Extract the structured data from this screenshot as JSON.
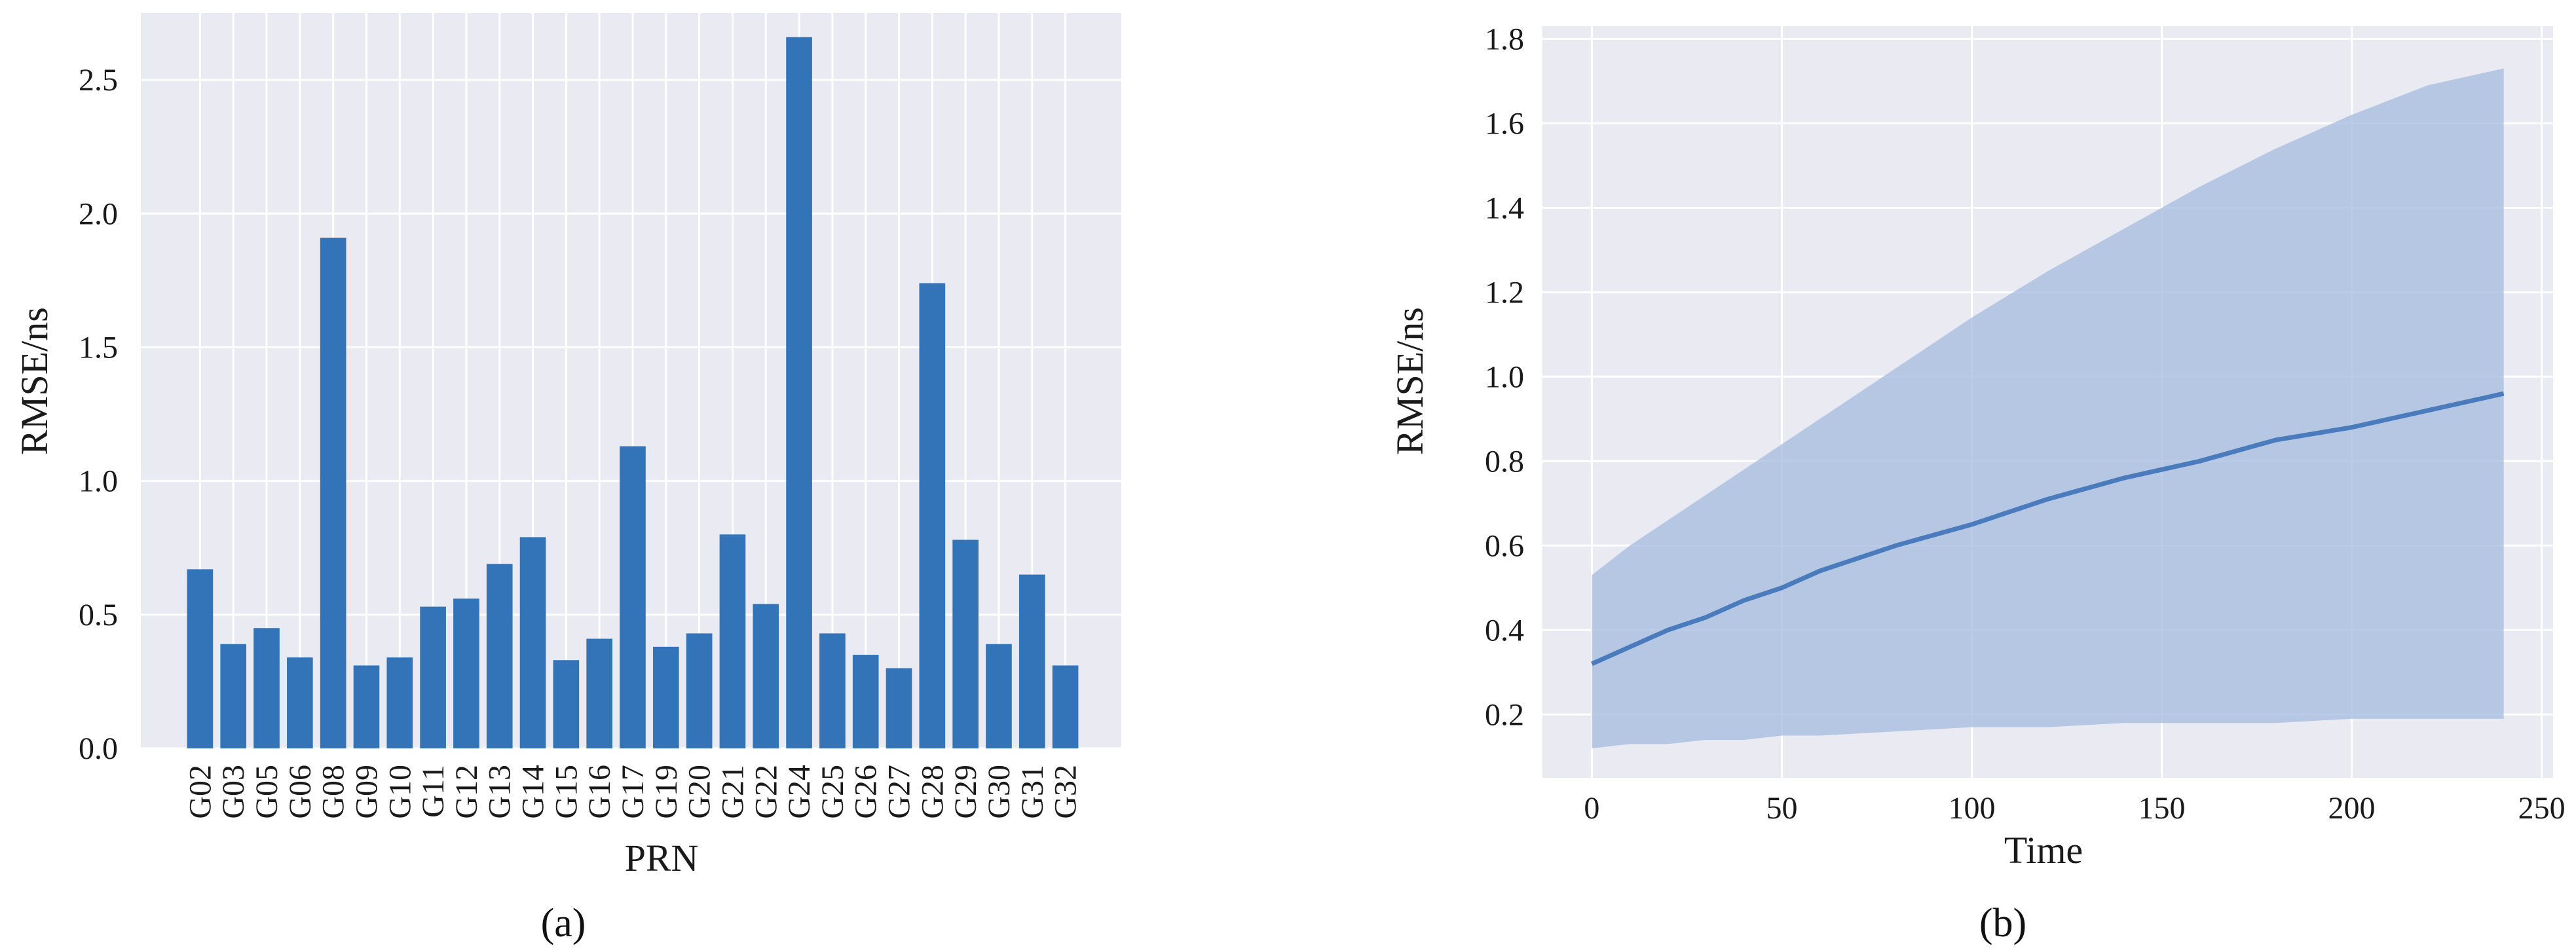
{
  "panels": [
    {
      "label": "(a)"
    },
    {
      "label": "(b)"
    }
  ],
  "chart_data": [
    {
      "type": "bar",
      "xlabel": "PRN",
      "ylabel": "RMSE/ns",
      "ylim": [
        0,
        2.75
      ],
      "yticks": [
        "0.0",
        "0.5",
        "1.0",
        "1.5",
        "2.0",
        "2.5"
      ],
      "grid": true,
      "bar_color": "#3274b7",
      "background": "#eaeaf2",
      "categories": [
        "G02",
        "G03",
        "G05",
        "G06",
        "G08",
        "G09",
        "G10",
        "G11",
        "G12",
        "G13",
        "G14",
        "G15",
        "G16",
        "G17",
        "G19",
        "G20",
        "G21",
        "G22",
        "G24",
        "G25",
        "G26",
        "G27",
        "G28",
        "G29",
        "G30",
        "G31",
        "G32"
      ],
      "values": [
        0.67,
        0.39,
        0.45,
        0.34,
        1.91,
        0.31,
        0.34,
        0.53,
        0.56,
        0.69,
        0.79,
        0.33,
        0.41,
        1.13,
        0.38,
        0.43,
        0.8,
        0.54,
        2.66,
        0.43,
        0.35,
        0.3,
        1.74,
        0.78,
        0.39,
        0.65,
        0.31
      ]
    },
    {
      "type": "area",
      "xlabel": "Time",
      "ylabel": "RMSE/ns",
      "xlim": [
        -13,
        253
      ],
      "ylim": [
        0.05,
        1.83
      ],
      "xticks": [
        "0",
        "50",
        "100",
        "150",
        "200",
        "250"
      ],
      "yticks": [
        "0.2",
        "0.4",
        "0.6",
        "0.8",
        "1.0",
        "1.2",
        "1.4",
        "1.6",
        "1.8"
      ],
      "grid": true,
      "line_color": "#4a7bbd",
      "band_color": "#a5bcdf",
      "background": "#eaeaf2",
      "x": [
        0,
        10,
        20,
        30,
        40,
        50,
        60,
        80,
        100,
        120,
        140,
        160,
        180,
        200,
        220,
        240
      ],
      "mean": [
        0.32,
        0.36,
        0.4,
        0.43,
        0.47,
        0.5,
        0.54,
        0.6,
        0.65,
        0.71,
        0.76,
        0.8,
        0.85,
        0.88,
        0.92,
        0.96
      ],
      "upper": [
        0.53,
        0.6,
        0.66,
        0.72,
        0.78,
        0.84,
        0.9,
        1.02,
        1.14,
        1.25,
        1.35,
        1.45,
        1.54,
        1.62,
        1.69,
        1.73
      ],
      "lower": [
        0.12,
        0.13,
        0.13,
        0.14,
        0.14,
        0.15,
        0.15,
        0.16,
        0.17,
        0.17,
        0.18,
        0.18,
        0.18,
        0.19,
        0.19,
        0.19
      ]
    }
  ]
}
